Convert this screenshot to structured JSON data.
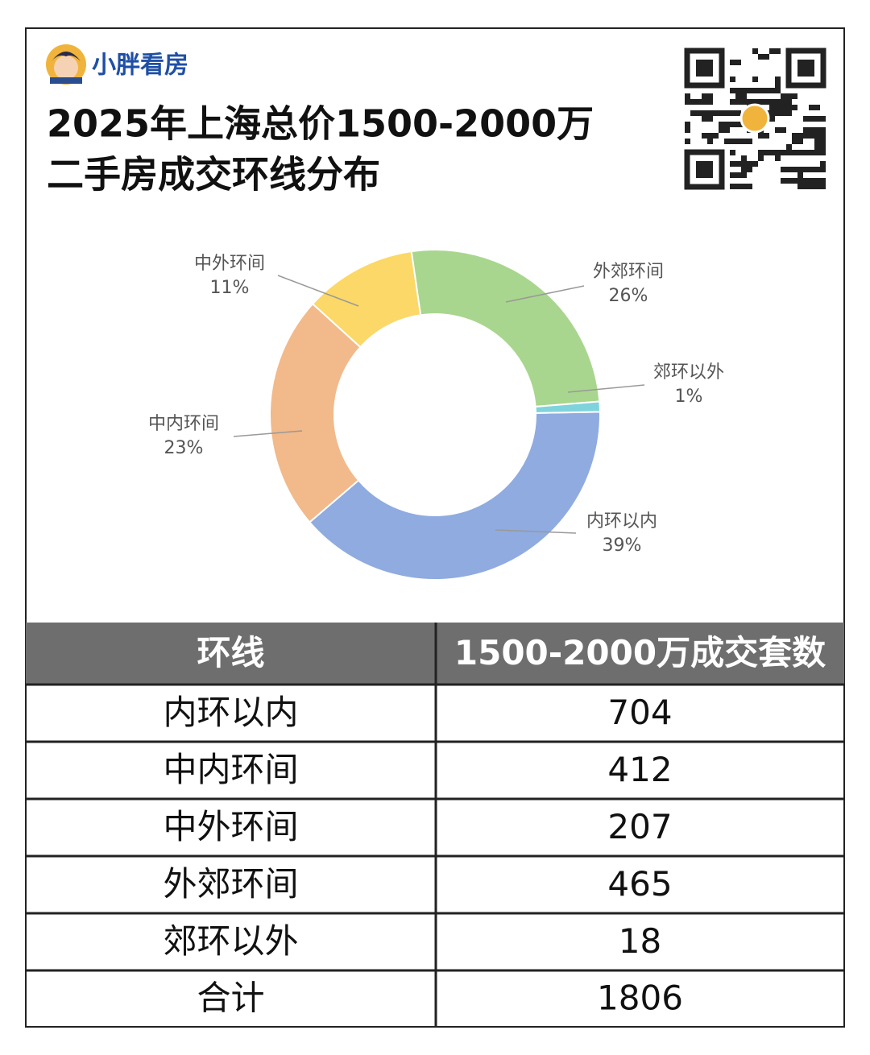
{
  "brand": "小胖看房",
  "title_lines": [
    "2025年上海总价1500-2000万",
    "二手房成交环线分布"
  ],
  "chart_data": {
    "type": "donut",
    "categories": [
      "内环以内",
      "中内环间",
      "中外环间",
      "外郊环间",
      "郊环以外"
    ],
    "values": [
      39,
      23,
      11,
      26,
      1
    ],
    "value_labels": [
      "39%",
      "23%",
      "11%",
      "26%",
      "1%"
    ],
    "colors": [
      "#8fabe0",
      "#f2b98a",
      "#fbd867",
      "#a9d68e",
      "#7fd3dc"
    ]
  },
  "table": {
    "header": [
      "环线",
      "1500-2000万成交套数"
    ],
    "rows": [
      [
        "内环以内",
        704
      ],
      [
        "中内环间",
        412
      ],
      [
        "中外环间",
        207
      ],
      [
        "外郊环间",
        465
      ],
      [
        "郊环以外",
        18
      ],
      [
        "合计",
        1806
      ]
    ]
  }
}
